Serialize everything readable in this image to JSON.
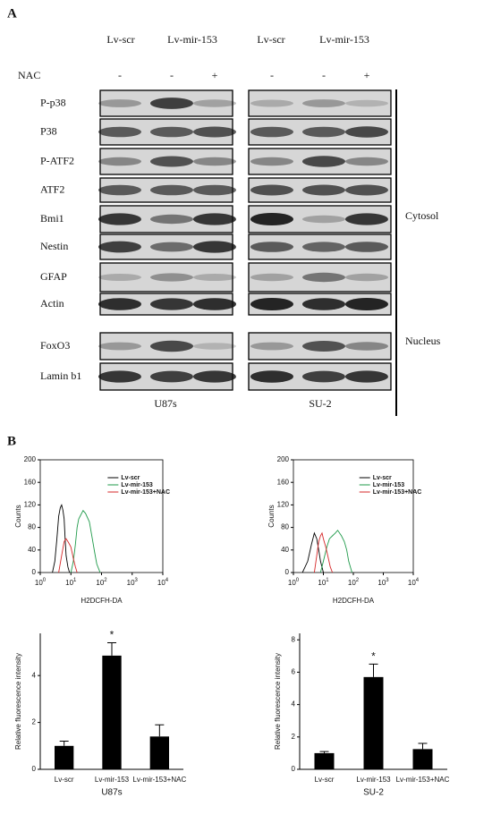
{
  "panel_a": {
    "label": "A",
    "columns": [
      "Lv-scr",
      "Lv-mir-153",
      "Lv-scr",
      "Lv-mir-153"
    ],
    "treatment": "NAC",
    "signs": [
      "-",
      "-",
      "+",
      "-",
      "-",
      "+"
    ],
    "rows": [
      "P-p38",
      "P38",
      "P-ATF2",
      "ATF2",
      "Bmi1",
      "Nestin",
      "GFAP",
      "Actin",
      "FoxO3",
      "Lamin b1"
    ],
    "compartments": [
      "Cytosol",
      "Nucleus"
    ],
    "cell_lines": [
      "U87s",
      "SU-2"
    ]
  },
  "panel_b_label": "B",
  "chart_data": [
    {
      "type": "histogram_line",
      "ylabel": "Counts",
      "xlabel": "H2DCFH-DA",
      "xscale": "log",
      "xlim": [
        1,
        10000
      ],
      "xticks": [
        {
          "value": 1,
          "label": "10",
          "exponent": "0"
        },
        {
          "value": 10,
          "label": "10",
          "exponent": "1"
        },
        {
          "value": 100,
          "label": "10",
          "exponent": "2"
        },
        {
          "value": 1000,
          "label": "10",
          "exponent": "3"
        },
        {
          "value": 10000,
          "label": "10",
          "exponent": "4"
        }
      ],
      "ylim": [
        0,
        200
      ],
      "yticks": [
        0,
        40,
        80,
        120,
        160,
        200
      ],
      "series": [
        {
          "name": "Lv-scr",
          "color": "#000000",
          "x": [
            2.5,
            3,
            3.5,
            4,
            4.5,
            5,
            5.5,
            6,
            6.5,
            7,
            8,
            9
          ],
          "values": [
            0,
            20,
            60,
            100,
            115,
            120,
            110,
            95,
            60,
            30,
            10,
            0
          ]
        },
        {
          "name": "Lv-mir-153",
          "color": "#1f9a4a",
          "x": [
            10,
            12,
            14,
            16,
            18,
            20,
            25,
            30,
            40,
            50,
            60,
            70,
            90
          ],
          "values": [
            0,
            20,
            50,
            80,
            95,
            100,
            110,
            105,
            90,
            60,
            35,
            15,
            0
          ]
        },
        {
          "name": "Lv-mir-153+NAC",
          "color": "#d62728",
          "x": [
            4,
            5,
            6,
            7,
            8,
            9,
            10,
            12,
            14,
            16
          ],
          "values": [
            0,
            30,
            55,
            60,
            55,
            50,
            45,
            25,
            10,
            0
          ]
        }
      ]
    },
    {
      "type": "histogram_line",
      "ylabel": "Counts",
      "xlabel": "H2DCFH-DA",
      "xscale": "log",
      "xlim": [
        1,
        10000
      ],
      "xticks": [
        {
          "value": 1,
          "label": "10",
          "exponent": "0"
        },
        {
          "value": 10,
          "label": "10",
          "exponent": "1"
        },
        {
          "value": 100,
          "label": "10",
          "exponent": "2"
        },
        {
          "value": 1000,
          "label": "10",
          "exponent": "3"
        },
        {
          "value": 10000,
          "label": "10",
          "exponent": "4"
        }
      ],
      "ylim": [
        0,
        200
      ],
      "yticks": [
        0,
        40,
        80,
        120,
        160,
        200
      ],
      "series": [
        {
          "name": "Lv-scr",
          "color": "#000000",
          "x": [
            2,
            3,
            4,
            5,
            6,
            7,
            8,
            10
          ],
          "values": [
            0,
            20,
            50,
            70,
            60,
            40,
            20,
            0
          ]
        },
        {
          "name": "Lv-mir-153",
          "color": "#1f9a4a",
          "x": [
            8,
            10,
            13,
            16,
            20,
            25,
            30,
            40,
            50,
            60,
            70,
            90
          ],
          "values": [
            0,
            20,
            45,
            60,
            65,
            70,
            75,
            65,
            55,
            40,
            20,
            0
          ]
        },
        {
          "name": "Lv-mir-153+NAC",
          "color": "#d62728",
          "x": [
            5,
            6,
            7,
            8,
            9,
            10,
            12,
            14,
            17,
            20
          ],
          "values": [
            0,
            30,
            55,
            65,
            70,
            60,
            45,
            30,
            10,
            0
          ]
        }
      ]
    },
    {
      "type": "bar",
      "ylabel": "Relative fluorescence intensity",
      "xlabel": "U87s",
      "categories": [
        "Lv-scr",
        "Lv-mir-153",
        "Lv-mir-153+NAC"
      ],
      "values": [
        1,
        4.85,
        1.4
      ],
      "errors": [
        0.2,
        0.55,
        0.5
      ],
      "color": "#000000",
      "ylim": [
        0,
        5.8
      ],
      "yticks": [
        0,
        2,
        4
      ],
      "annotations": [
        {
          "category": "Lv-mir-153",
          "text": "*"
        }
      ]
    },
    {
      "type": "bar",
      "ylabel": "Relative fluorescence intensity",
      "xlabel": "SU-2",
      "categories": [
        "Lv-scr",
        "Lv-mir-153",
        "Lv-mir-153+NAC"
      ],
      "values": [
        1,
        5.7,
        1.25
      ],
      "errors": [
        0.1,
        0.8,
        0.35
      ],
      "color": "#000000",
      "ylim": [
        0,
        8.4
      ],
      "yticks": [
        0,
        2,
        4,
        6,
        8
      ],
      "annotations": [
        {
          "category": "Lv-mir-153",
          "text": "*"
        }
      ]
    }
  ]
}
